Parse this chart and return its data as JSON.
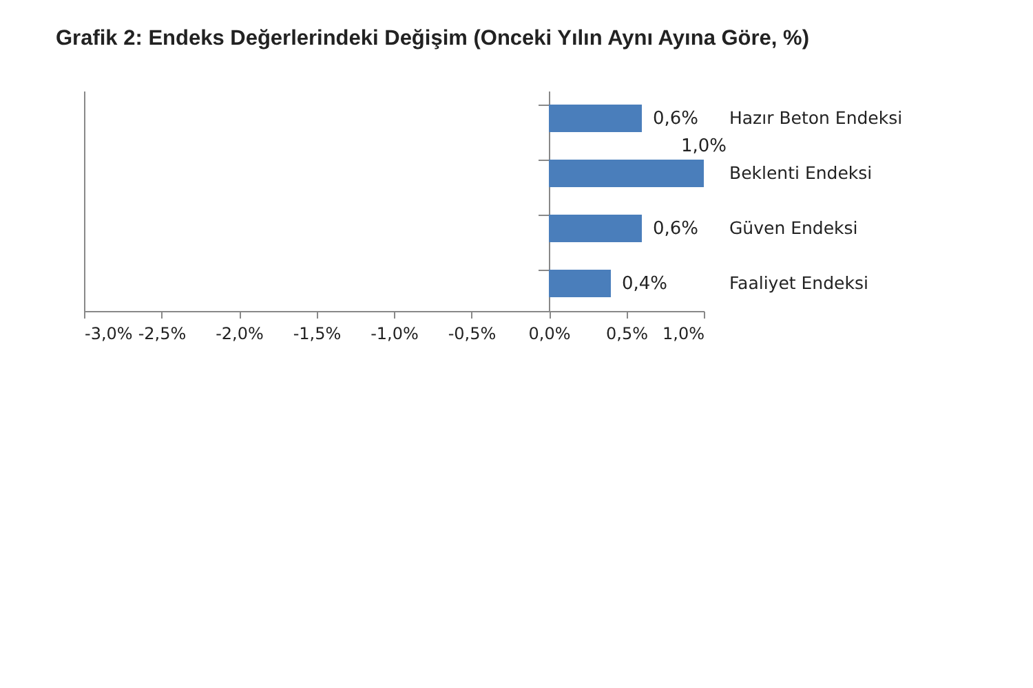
{
  "chart_data": {
    "type": "bar",
    "orientation": "horizontal",
    "title": "Grafik 2: Endeks Değerlerindeki Değişim (Onceki Yılın Aynı Ayına Göre, %)",
    "categories": [
      "Hazır Beton Endeksi",
      "Beklenti Endeksi",
      "Güven Endeksi",
      "Faaliyet Endeksi"
    ],
    "values": [
      0.6,
      1.0,
      0.6,
      0.4
    ],
    "color": "#4a7ebb",
    "value_labels": [
      "0,6%",
      "1,0%",
      "0,6%",
      "0,4%"
    ],
    "xlim": [
      -3.0,
      1.0
    ],
    "xticks": [
      {
        "value": -3.0,
        "label": "-3,0%"
      },
      {
        "value": -2.5,
        "label": "-2,5%"
      },
      {
        "value": -2.0,
        "label": "-2,0%"
      },
      {
        "value": -1.5,
        "label": "-1,5%"
      },
      {
        "value": -1.0,
        "label": "-1,0%"
      },
      {
        "value": -0.5,
        "label": "-0,5%"
      },
      {
        "value": 0.0,
        "label": "0,0%"
      },
      {
        "value": 0.5,
        "label": "0,5%"
      },
      {
        "value": 1.0,
        "label": "1,0%"
      }
    ]
  }
}
